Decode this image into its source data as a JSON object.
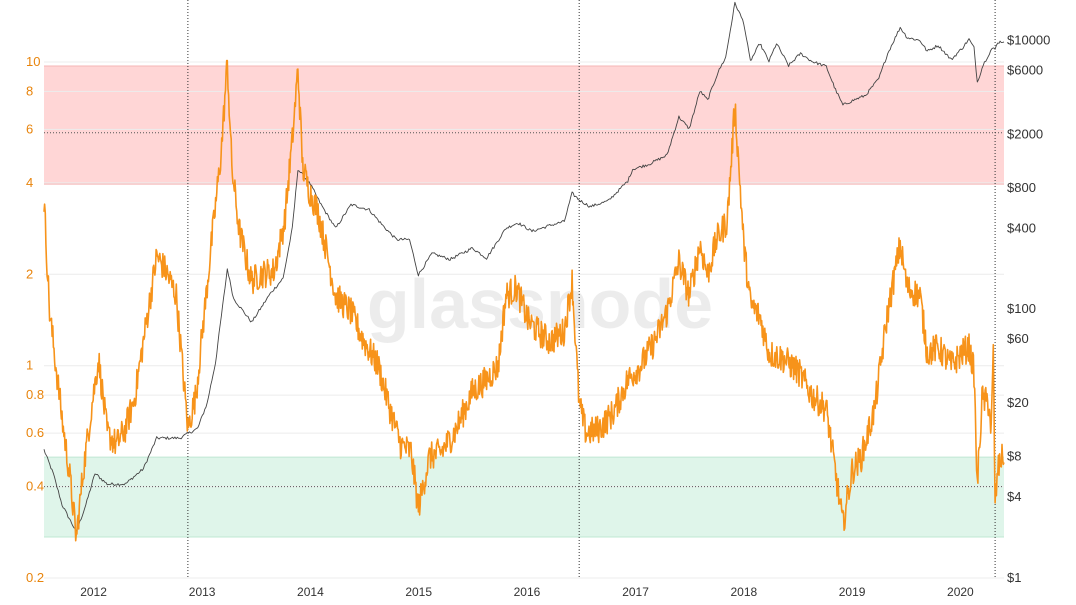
{
  "watermark": "glassnode",
  "colors": {
    "indicator": "#f7931a",
    "price": "#444444",
    "red_band": "#ffd6d6",
    "green_band": "#dff5ea",
    "grid": "#ececec",
    "left_ticks": "#e8840c"
  },
  "chart_data": {
    "type": "line",
    "x_axis": {
      "type": "time",
      "range": [
        "2011-08-01",
        "2020-06-10"
      ],
      "tick_labels": [
        "2012",
        "2013",
        "2014",
        "2015",
        "2016",
        "2017",
        "2018",
        "2019",
        "2020"
      ]
    },
    "y_left": {
      "scale": "log",
      "range": [
        0.2,
        16
      ],
      "tick_values": [
        0.2,
        0.4,
        0.6,
        0.8,
        1,
        2,
        4,
        6,
        8,
        10
      ],
      "tick_labels": [
        "0.2",
        "0.4",
        "0.6",
        "0.8",
        "1",
        "2",
        "4",
        "6",
        "8",
        "10"
      ]
    },
    "y_right": {
      "scale": "log",
      "range": [
        1,
        20000
      ],
      "tick_values": [
        1,
        4,
        8,
        20,
        60,
        100,
        400,
        800,
        2000,
        6000,
        10000
      ],
      "tick_labels": [
        "$1",
        "$4",
        "$8",
        "$20",
        "$60",
        "$100",
        "$400",
        "$800",
        "$2000",
        "$6000",
        "$10000"
      ]
    },
    "bands": [
      {
        "axis": "left",
        "from": 3.96,
        "to": 9.7,
        "color": "red"
      },
      {
        "axis": "left",
        "from": 0.273,
        "to": 0.5,
        "color": "green"
      }
    ],
    "horizontal_guides": [
      {
        "axis": "left",
        "value": 5.85
      },
      {
        "axis": "left",
        "value": 0.4
      }
    ],
    "vertical_markers": [
      "2012-11-28",
      "2016-07-09",
      "2020-05-11"
    ],
    "series": [
      {
        "axis": "left",
        "points": [
          [
            "2011-08-01",
            3.5
          ],
          [
            "2011-08-20",
            1.5
          ],
          [
            "2011-09-10",
            1.0
          ],
          [
            "2011-10-05",
            0.62
          ],
          [
            "2011-10-25",
            0.45
          ],
          [
            "2011-11-18",
            0.27
          ],
          [
            "2011-12-10",
            0.44
          ],
          [
            "2012-01-10",
            0.75
          ],
          [
            "2012-02-01",
            1.05
          ],
          [
            "2012-03-01",
            0.6
          ],
          [
            "2012-04-01",
            0.55
          ],
          [
            "2012-05-01",
            0.62
          ],
          [
            "2012-06-01",
            0.78
          ],
          [
            "2012-07-01",
            1.2
          ],
          [
            "2012-08-15",
            2.3
          ],
          [
            "2012-09-15",
            2.05
          ],
          [
            "2012-10-20",
            1.7
          ],
          [
            "2012-11-28",
            0.62
          ],
          [
            "2012-12-25",
            0.8
          ],
          [
            "2013-02-15",
            2.5
          ],
          [
            "2013-03-20",
            5.0
          ],
          [
            "2013-04-10",
            10.0
          ],
          [
            "2013-04-25",
            4.5
          ],
          [
            "2013-05-20",
            2.8
          ],
          [
            "2013-06-30",
            1.9
          ],
          [
            "2013-08-01",
            2.0
          ],
          [
            "2013-09-15",
            2.05
          ],
          [
            "2013-10-20",
            3.0
          ],
          [
            "2013-11-15",
            5.5
          ],
          [
            "2013-12-04",
            9.5
          ],
          [
            "2013-12-20",
            4.5
          ],
          [
            "2014-01-10",
            3.8
          ],
          [
            "2014-02-10",
            3.2
          ],
          [
            "2014-03-10",
            2.4
          ],
          [
            "2014-04-10",
            1.7
          ],
          [
            "2014-06-01",
            1.5
          ],
          [
            "2014-07-15",
            1.2
          ],
          [
            "2014-09-01",
            1.0
          ],
          [
            "2014-10-10",
            0.72
          ],
          [
            "2014-11-15",
            0.55
          ],
          [
            "2014-12-20",
            0.52
          ],
          [
            "2015-01-14",
            0.34
          ],
          [
            "2015-02-20",
            0.5
          ],
          [
            "2015-04-01",
            0.52
          ],
          [
            "2015-05-15",
            0.6
          ],
          [
            "2015-07-15",
            0.82
          ],
          [
            "2015-09-01",
            0.9
          ],
          [
            "2015-10-10",
            1.0
          ],
          [
            "2015-11-05",
            1.7
          ],
          [
            "2015-12-10",
            1.8
          ],
          [
            "2016-01-20",
            1.4
          ],
          [
            "2016-02-20",
            1.3
          ],
          [
            "2016-04-01",
            1.2
          ],
          [
            "2016-05-20",
            1.3
          ],
          [
            "2016-06-15",
            1.9
          ],
          [
            "2016-07-09",
            0.75
          ],
          [
            "2016-08-01",
            0.6
          ],
          [
            "2016-09-15",
            0.62
          ],
          [
            "2016-11-01",
            0.7
          ],
          [
            "2016-12-20",
            0.9
          ],
          [
            "2017-02-01",
            1.0
          ],
          [
            "2017-03-20",
            1.2
          ],
          [
            "2017-05-01",
            1.5
          ],
          [
            "2017-06-10",
            2.2
          ],
          [
            "2017-07-15",
            1.7
          ],
          [
            "2017-08-20",
            2.5
          ],
          [
            "2017-09-15",
            2.0
          ],
          [
            "2017-10-15",
            2.6
          ],
          [
            "2017-11-20",
            3.0
          ],
          [
            "2017-12-16",
            7.2
          ],
          [
            "2018-01-15",
            2.5
          ],
          [
            "2018-02-06",
            1.6
          ],
          [
            "2018-03-10",
            1.45
          ],
          [
            "2018-04-10",
            1.1
          ],
          [
            "2018-06-01",
            1.05
          ],
          [
            "2018-07-20",
            0.95
          ],
          [
            "2018-09-01",
            0.8
          ],
          [
            "2018-10-20",
            0.72
          ],
          [
            "2018-12-15",
            0.3
          ],
          [
            "2019-01-15",
            0.45
          ],
          [
            "2019-02-15",
            0.5
          ],
          [
            "2019-04-01",
            0.72
          ],
          [
            "2019-05-15",
            1.5
          ],
          [
            "2019-06-26",
            2.5
          ],
          [
            "2019-07-20",
            1.8
          ],
          [
            "2019-09-01",
            1.7
          ],
          [
            "2019-09-25",
            1.1
          ],
          [
            "2019-11-01",
            1.15
          ],
          [
            "2019-12-15",
            1.0
          ],
          [
            "2020-01-20",
            1.1
          ],
          [
            "2020-02-13",
            1.15
          ],
          [
            "2020-03-01",
            0.95
          ],
          [
            "2020-03-12",
            0.4
          ],
          [
            "2020-03-28",
            0.78
          ],
          [
            "2020-04-20",
            0.75
          ],
          [
            "2020-04-28",
            0.6
          ],
          [
            "2020-05-05",
            1.1
          ],
          [
            "2020-05-11",
            0.35
          ],
          [
            "2020-05-20",
            0.45
          ],
          [
            "2020-06-01",
            0.5
          ],
          [
            "2020-06-10",
            0.48
          ]
        ]
      },
      {
        "axis": "right",
        "points": [
          [
            "2011-08-01",
            9
          ],
          [
            "2011-09-01",
            6
          ],
          [
            "2011-10-01",
            3.5
          ],
          [
            "2011-11-18",
            2.2
          ],
          [
            "2011-12-20",
            3.5
          ],
          [
            "2012-01-20",
            6
          ],
          [
            "2012-03-01",
            5
          ],
          [
            "2012-05-01",
            5
          ],
          [
            "2012-07-01",
            6.5
          ],
          [
            "2012-08-15",
            11
          ],
          [
            "2012-09-20",
            11
          ],
          [
            "2012-11-01",
            11
          ],
          [
            "2012-12-31",
            13
          ],
          [
            "2013-02-01",
            20
          ],
          [
            "2013-03-01",
            40
          ],
          [
            "2013-04-10",
            200
          ],
          [
            "2013-05-01",
            120
          ],
          [
            "2013-07-01",
            80
          ],
          [
            "2013-09-01",
            130
          ],
          [
            "2013-10-15",
            170
          ],
          [
            "2013-11-15",
            400
          ],
          [
            "2013-12-04",
            1100
          ],
          [
            "2014-01-15",
            850
          ],
          [
            "2014-02-20",
            600
          ],
          [
            "2014-04-10",
            400
          ],
          [
            "2014-06-01",
            600
          ],
          [
            "2014-08-01",
            550
          ],
          [
            "2014-09-20",
            410
          ],
          [
            "2014-11-01",
            330
          ],
          [
            "2014-12-15",
            330
          ],
          [
            "2015-01-14",
            180
          ],
          [
            "2015-03-01",
            260
          ],
          [
            "2015-05-01",
            235
          ],
          [
            "2015-07-15",
            285
          ],
          [
            "2015-09-01",
            240
          ],
          [
            "2015-11-05",
            400
          ],
          [
            "2015-12-15",
            440
          ],
          [
            "2016-02-01",
            380
          ],
          [
            "2016-04-01",
            420
          ],
          [
            "2016-05-20",
            450
          ],
          [
            "2016-06-15",
            730
          ],
          [
            "2016-07-09",
            650
          ],
          [
            "2016-08-15",
            580
          ],
          [
            "2016-10-15",
            640
          ],
          [
            "2016-12-20",
            900
          ],
          [
            "2017-01-05",
            1100
          ],
          [
            "2017-03-01",
            1200
          ],
          [
            "2017-05-01",
            1400
          ],
          [
            "2017-06-10",
            2700
          ],
          [
            "2017-07-15",
            2200
          ],
          [
            "2017-08-20",
            4200
          ],
          [
            "2017-09-15",
            3600
          ],
          [
            "2017-10-20",
            5800
          ],
          [
            "2017-11-15",
            7500
          ],
          [
            "2017-12-16",
            19000
          ],
          [
            "2018-01-15",
            13500
          ],
          [
            "2018-02-06",
            7000
          ],
          [
            "2018-03-10",
            9500
          ],
          [
            "2018-04-10",
            7000
          ],
          [
            "2018-05-05",
            9500
          ],
          [
            "2018-06-15",
            6500
          ],
          [
            "2018-07-25",
            8000
          ],
          [
            "2018-09-01",
            7000
          ],
          [
            "2018-10-20",
            6400
          ],
          [
            "2018-11-20",
            4300
          ],
          [
            "2018-12-15",
            3300
          ],
          [
            "2019-01-20",
            3600
          ],
          [
            "2019-03-01",
            3900
          ],
          [
            "2019-04-15",
            5200
          ],
          [
            "2019-05-15",
            8000
          ],
          [
            "2019-06-26",
            12500
          ],
          [
            "2019-07-20",
            10500
          ],
          [
            "2019-09-01",
            10000
          ],
          [
            "2019-09-25",
            8300
          ],
          [
            "2019-11-01",
            9200
          ],
          [
            "2019-12-15",
            7200
          ],
          [
            "2020-01-20",
            8700
          ],
          [
            "2020-02-13",
            10200
          ],
          [
            "2020-03-01",
            8800
          ],
          [
            "2020-03-12",
            4900
          ],
          [
            "2020-04-01",
            6600
          ],
          [
            "2020-04-30",
            8700
          ],
          [
            "2020-05-11",
            8600
          ],
          [
            "2020-05-20",
            9700
          ],
          [
            "2020-06-01",
            9800
          ],
          [
            "2020-06-10",
            9750
          ]
        ]
      }
    ]
  }
}
